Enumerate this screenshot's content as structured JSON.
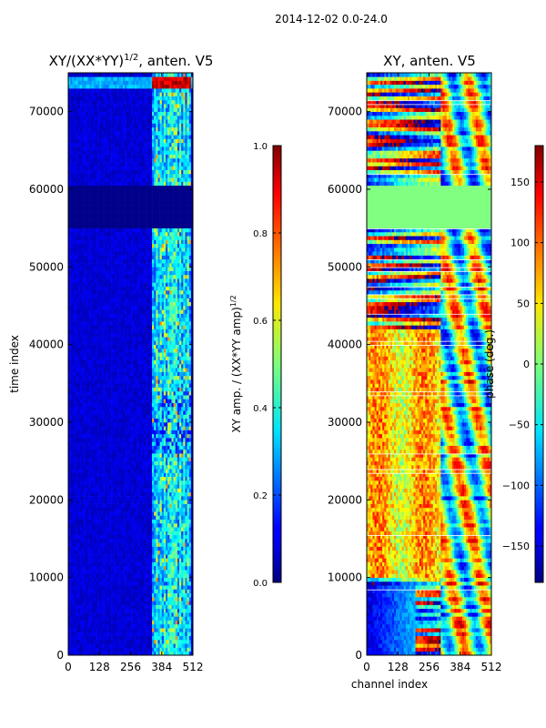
{
  "figure": {
    "suptitle": "2014-12-02 0.0-24.0"
  },
  "chart_data": [
    {
      "type": "heatmap",
      "title_main": "XY/(XX*YY)",
      "title_sup": "1/2",
      "title_tail": ", anten. V5",
      "xlabel": "",
      "ylabel": "time index",
      "xlim": [
        0,
        512
      ],
      "ylim": [
        0,
        75000
      ],
      "xticks": [
        0,
        128,
        256,
        384,
        512
      ],
      "yticks": [
        0,
        10000,
        20000,
        30000,
        40000,
        50000,
        60000,
        70000
      ],
      "colormap": "jet",
      "colorbar": {
        "label_main": "XY amp. / (XX*YY amp)",
        "label_sup": "1/2",
        "range": [
          0.0,
          1.0
        ],
        "ticks": [
          "0.0",
          "0.2",
          "0.4",
          "0.6",
          "0.8",
          "1.0"
        ],
        "tick_values": [
          0.0,
          0.2,
          0.4,
          0.6,
          0.8,
          1.0
        ]
      },
      "features": {
        "background_level": 0.05,
        "active_channel_range": [
          345,
          505
        ],
        "active_level": 0.3,
        "blank_time_range": [
          55000,
          60500
        ],
        "bright_channels": [
          362,
          378,
          395,
          410,
          425,
          440,
          458,
          474,
          490
        ],
        "saturated_time_range": [
          73000,
          74500
        ]
      }
    },
    {
      "type": "heatmap",
      "title_main": "XY, anten. V5",
      "title_sup": "",
      "title_tail": "",
      "xlabel": "channel index",
      "ylabel": "",
      "xlim": [
        0,
        512
      ],
      "ylim": [
        0,
        75000
      ],
      "xticks": [
        0,
        128,
        256,
        384,
        512
      ],
      "yticks": [
        0,
        10000,
        20000,
        30000,
        40000,
        50000,
        60000,
        70000
      ],
      "colormap": "jet",
      "colorbar": {
        "label_main": "phase (deg.)",
        "label_sup": "",
        "range": [
          -180,
          180
        ],
        "ticks": [
          "−150",
          "−100",
          "−50",
          "0",
          "50",
          "100",
          "150"
        ],
        "tick_values": [
          -150,
          -100,
          -50,
          0,
          50,
          100,
          150
        ]
      },
      "features": {
        "constant_time_range": [
          55000,
          60500
        ],
        "constant_phase": 0,
        "warm_channel_range": [
          0,
          300
        ],
        "warm_time_range": [
          10000,
          42000
        ],
        "cold_corner_time_range": [
          0,
          9000
        ],
        "cold_corner_channel_range": [
          0,
          200
        ]
      }
    }
  ],
  "colors": {
    "background": "#ffffff",
    "axis": "#000000",
    "low_end": "#00007f",
    "high_end": "#7f0000"
  }
}
